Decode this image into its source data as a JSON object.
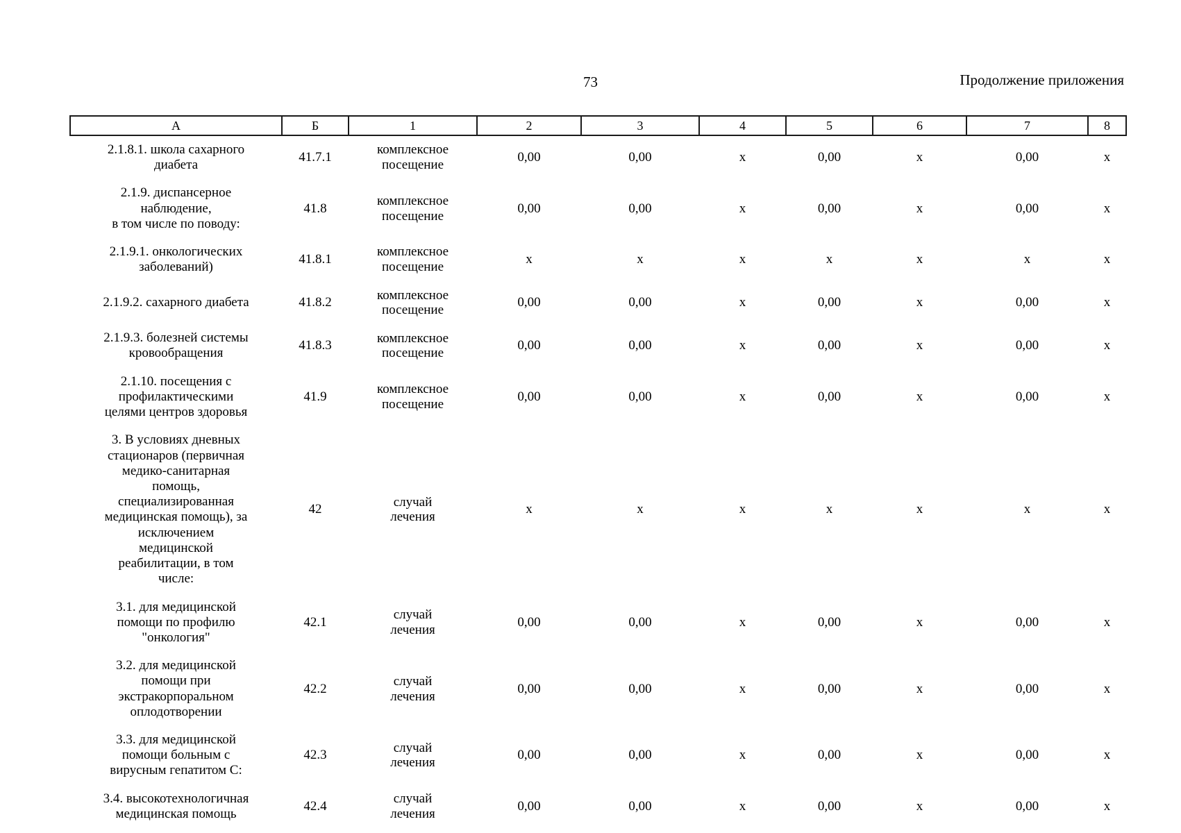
{
  "page": {
    "number": "73",
    "header_right": "Продолжение приложения"
  },
  "table": {
    "columns": [
      "А",
      "Б",
      "1",
      "2",
      "3",
      "4",
      "5",
      "6",
      "7",
      "8"
    ],
    "rows": [
      {
        "name": "2.1.8.1. школа сахарного\nдиабета",
        "code": "41.7.1",
        "unit": "комплексное\nпосещение",
        "values": [
          "0,00",
          "0,00",
          "x",
          "0,00",
          "x",
          "0,00",
          "x"
        ]
      },
      {
        "name": "2.1.9. диспансерное\nнаблюдение,\nв том числе по поводу:",
        "code": "41.8",
        "unit": "комплексное\nпосещение",
        "values": [
          "0,00",
          "0,00",
          "x",
          "0,00",
          "x",
          "0,00",
          "x"
        ]
      },
      {
        "name": "2.1.9.1. онкологических\nзаболеваний)",
        "code": "41.8.1",
        "unit": "комплексное\nпосещение",
        "values": [
          "x",
          "x",
          "x",
          "x",
          "x",
          "x",
          "x"
        ]
      },
      {
        "name": "2.1.9.2. сахарного диабета",
        "code": "41.8.2",
        "unit": "комплексное\nпосещение",
        "values": [
          "0,00",
          "0,00",
          "x",
          "0,00",
          "x",
          "0,00",
          "x"
        ]
      },
      {
        "name": "2.1.9.3. болезней системы\nкровообращения",
        "code": "41.8.3",
        "unit": "комплексное\nпосещение",
        "values": [
          "0,00",
          "0,00",
          "x",
          "0,00",
          "x",
          "0,00",
          "x"
        ]
      },
      {
        "name": "2.1.10. посещения с\nпрофилактическими\nцелями центров здоровья",
        "code": "41.9",
        "unit": "комплексное\nпосещение",
        "values": [
          "0,00",
          "0,00",
          "x",
          "0,00",
          "x",
          "0,00",
          "x"
        ]
      },
      {
        "name": "3. В условиях дневных\nстационаров (первичная\nмедико-санитарная\nпомощь,\nспециализированная\nмедицинская помощь), за\nисключением\nмедицинской\nреабилитации, в том\nчисле:",
        "code": "42",
        "unit": "случай\nлечения",
        "values": [
          "x",
          "x",
          "x",
          "x",
          "x",
          "x",
          "x"
        ]
      },
      {
        "name": "3.1. для медицинской\nпомощи по профилю\n\"онкология\"",
        "code": "42.1",
        "unit": "случай\nлечения",
        "values": [
          "0,00",
          "0,00",
          "x",
          "0,00",
          "x",
          "0,00",
          "x"
        ]
      },
      {
        "name": "3.2. для медицинской\nпомощи при\nэкстракорпоральном\nоплодотворении",
        "code": "42.2",
        "unit": "случай\nлечения",
        "values": [
          "0,00",
          "0,00",
          "x",
          "0,00",
          "x",
          "0,00",
          "x"
        ]
      },
      {
        "name": "3.3. для медицинской\nпомощи больным с\nвирусным гепатитом С:",
        "code": "42.3",
        "unit": "случай\nлечения",
        "values": [
          "0,00",
          "0,00",
          "x",
          "0,00",
          "x",
          "0,00",
          "x"
        ]
      },
      {
        "name": "3.4. высокотехнологичная\nмедицинская помощь",
        "code": "42.4",
        "unit": "случай\nлечения",
        "values": [
          "0,00",
          "0,00",
          "x",
          "0,00",
          "x",
          "0,00",
          "x"
        ]
      }
    ]
  }
}
